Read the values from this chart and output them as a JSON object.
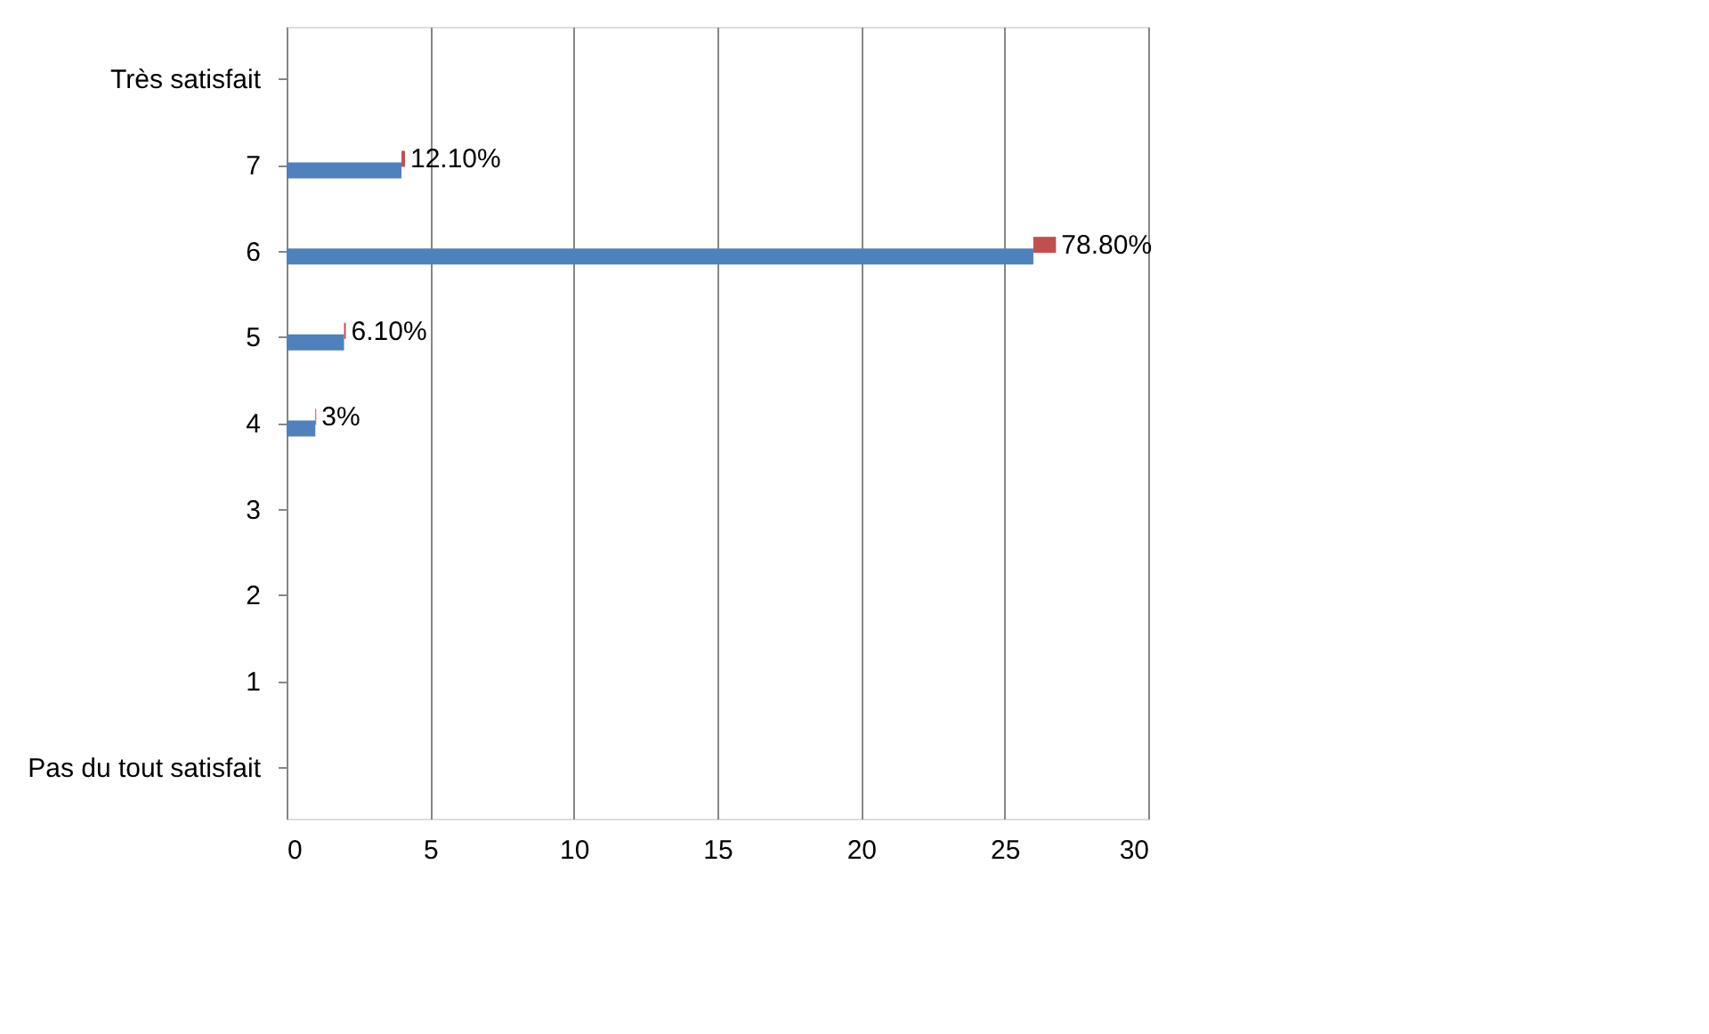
{
  "chart_data": {
    "type": "bar",
    "orientation": "horizontal",
    "stacked": true,
    "categories": [
      "Très satisfait",
      "7",
      "6",
      "5",
      "4",
      "3",
      "2",
      "1",
      "Pas du tout satisfait"
    ],
    "series": [
      {
        "color": "#4f81bd",
        "values": [
          null,
          4,
          26,
          2,
          1,
          null,
          null,
          null,
          null
        ]
      },
      {
        "color": "#c0504d",
        "values": [
          null,
          0.121,
          0.788,
          0.061,
          0.03,
          null,
          null,
          null,
          null
        ],
        "value_labels": [
          null,
          "12.10%",
          "78.80%",
          "6.10%",
          "3%",
          null,
          null,
          null,
          null
        ]
      }
    ],
    "xlim": [
      0,
      30
    ],
    "xticks": [
      0,
      5,
      10,
      15,
      20,
      25,
      30
    ],
    "grid": "x"
  }
}
